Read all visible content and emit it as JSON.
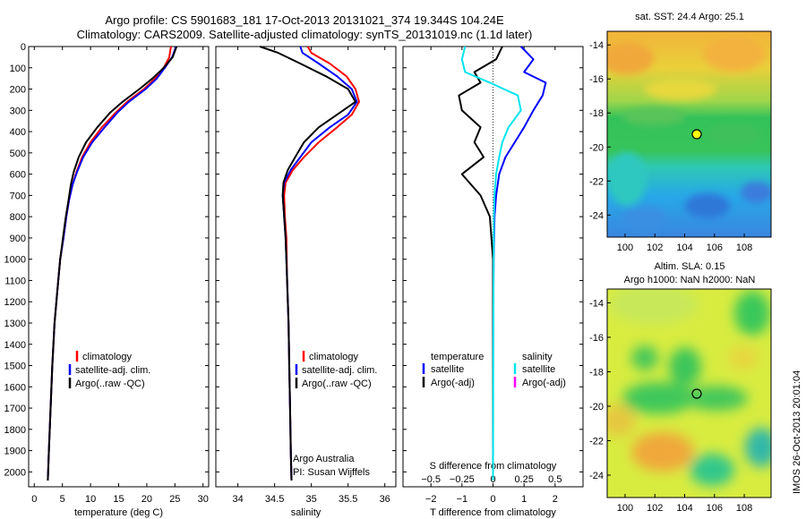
{
  "header": {
    "line1": "Argo profile: CS 5901683_181 17-Oct-2013 20131021_374 19.344S 104.24E",
    "line2": "Climatology: CARS2009. Satellite-adjusted climatology: synTS_20131019.nc (1.1d later)"
  },
  "side_stamp": "IMOS 26-Oct-2013 20:01:04",
  "colors": {
    "climatology": "#ff0000",
    "satellite": "#0000ff",
    "argo": "#000000",
    "argo_qc_marker": "#000000",
    "satellite_s_diff": "#00e5ee",
    "argo_s_diff": "#ff00ff"
  },
  "chart_data": [
    {
      "type": "line",
      "xlabel": "temperature (deg C)",
      "ylabel": "",
      "xlim": [
        -1,
        31
      ],
      "ylim": [
        2070,
        0
      ],
      "xticks": [
        0,
        5,
        10,
        15,
        20,
        25,
        30
      ],
      "xtick_labels": [
        "0",
        "5",
        "10",
        "15",
        "20",
        "25",
        "30"
      ],
      "yticks": [
        0,
        100,
        200,
        300,
        400,
        500,
        600,
        700,
        800,
        900,
        1000,
        1100,
        1200,
        1300,
        1400,
        1500,
        1600,
        1700,
        1800,
        1900,
        2000
      ],
      "ytick_labels": [
        "0",
        "100",
        "200",
        "300",
        "400",
        "500",
        "600",
        "700",
        "800",
        "900",
        "1000",
        "1100",
        "1200",
        "1300",
        "1400",
        "1500",
        "1600",
        "1700",
        "1800",
        "1900",
        "2000"
      ],
      "legend": [
        "climatology",
        "satellite-adj. clim.",
        "Argo(..raw -QC)"
      ],
      "series": [
        {
          "name": "climatology",
          "color": "#ff0000",
          "x": [
            24.3,
            24.0,
            23.0,
            21.5,
            19.5,
            16.5,
            14.5,
            12.0,
            10.0,
            8.5,
            7.5,
            6.8,
            6.2,
            5.7,
            5.2,
            4.6,
            4.1,
            3.6,
            3.2,
            2.9,
            2.6,
            2.4
          ],
          "y": [
            0,
            50,
            100,
            150,
            200,
            260,
            310,
            380,
            450,
            520,
            590,
            650,
            720,
            800,
            900,
            1000,
            1150,
            1300,
            1500,
            1700,
            1900,
            2040
          ]
        },
        {
          "name": "satellite-adj. clim.",
          "color": "#0000ff",
          "x": [
            25.2,
            24.5,
            23.2,
            21.8,
            19.8,
            16.8,
            14.8,
            12.5,
            10.3,
            8.7,
            7.6,
            6.8,
            6.2,
            5.7,
            5.2,
            4.6,
            4.1,
            3.6,
            3.2,
            2.9,
            2.6,
            2.4
          ],
          "y": [
            0,
            50,
            100,
            150,
            200,
            260,
            310,
            380,
            450,
            520,
            590,
            650,
            720,
            800,
            900,
            1000,
            1150,
            1300,
            1500,
            1700,
            1900,
            2040
          ]
        },
        {
          "name": "Argo(..raw -QC)",
          "color": "#000000",
          "x": [
            25.3,
            24.6,
            23.0,
            21.0,
            18.7,
            15.7,
            13.5,
            11.2,
            9.2,
            7.9,
            7.0,
            6.5,
            6.1,
            5.6,
            5.1,
            4.6,
            4.1,
            3.6,
            3.2,
            2.9,
            2.6,
            2.4
          ],
          "y": [
            0,
            50,
            100,
            150,
            200,
            260,
            310,
            380,
            450,
            520,
            590,
            650,
            720,
            800,
            900,
            1000,
            1150,
            1300,
            1500,
            1700,
            1900,
            2040
          ]
        }
      ]
    },
    {
      "type": "line",
      "xlabel": "salinity",
      "xlim": [
        33.7,
        36.15
      ],
      "ylim": [
        2070,
        0
      ],
      "xticks": [
        34,
        34.5,
        35,
        35.5,
        36
      ],
      "xtick_labels": [
        "34",
        "34.5",
        "35",
        "35.5",
        "36"
      ],
      "legend": [
        "climatology",
        "satellite-adj. clim.",
        "Argo(..raw -QC)"
      ],
      "annotations": [
        "Argo Australia",
        "PI: Susan Wijffels"
      ],
      "series": [
        {
          "name": "climatology",
          "color": "#ff0000",
          "x": [
            34.95,
            35.0,
            35.25,
            35.48,
            35.6,
            35.65,
            35.55,
            35.35,
            35.1,
            34.9,
            34.75,
            34.65,
            34.63,
            34.64,
            34.66,
            34.67,
            34.69,
            34.7,
            34.71,
            34.72,
            34.73
          ],
          "y": [
            0,
            30,
            80,
            140,
            200,
            260,
            320,
            380,
            450,
            520,
            580,
            640,
            700,
            800,
            900,
            1100,
            1300,
            1500,
            1700,
            1900,
            2040
          ]
        },
        {
          "name": "satellite-adj. clim.",
          "color": "#0000ff",
          "x": [
            34.85,
            34.88,
            35.1,
            35.35,
            35.55,
            35.62,
            35.5,
            35.25,
            35.0,
            34.85,
            34.72,
            34.63,
            34.61,
            34.63,
            34.65,
            34.67,
            34.69,
            34.7,
            34.71,
            34.72,
            34.73
          ],
          "y": [
            0,
            30,
            80,
            140,
            200,
            260,
            320,
            380,
            450,
            520,
            580,
            640,
            700,
            800,
            900,
            1100,
            1300,
            1500,
            1700,
            1900,
            2040
          ]
        },
        {
          "name": "Argo(..raw -QC)",
          "color": "#000000",
          "x": [
            34.3,
            34.55,
            34.85,
            35.2,
            35.5,
            35.6,
            35.35,
            35.1,
            34.9,
            34.78,
            34.68,
            34.62,
            34.61,
            34.63,
            34.65,
            34.67,
            34.69,
            34.7,
            34.71,
            34.72,
            34.73
          ],
          "y": [
            0,
            30,
            80,
            140,
            200,
            260,
            320,
            380,
            450,
            520,
            580,
            640,
            700,
            800,
            900,
            1100,
            1300,
            1500,
            1700,
            1900,
            2040
          ]
        }
      ]
    },
    {
      "type": "line",
      "xlabel": "T difference from climatology",
      "secondary_xlabel": "S difference from climatology",
      "xlim": [
        -2.9,
        2.9
      ],
      "ylim": [
        2070,
        0
      ],
      "xticks": [
        -2,
        -1,
        0,
        1,
        2
      ],
      "xtick_labels": [
        "−2",
        "−1",
        "0",
        "1",
        "2"
      ],
      "secondary_xticks": [
        -0.5,
        -0.25,
        0,
        0.25,
        0.5
      ],
      "secondary_xtick_labels": [
        "−0.5",
        "−0.25",
        "0",
        "0.25",
        "0.5"
      ],
      "legend_temperature_title": "temperature",
      "legend_salinity_title": "salinity",
      "legend_temperature": [
        "satellite",
        "Argo(-adj)"
      ],
      "legend_salinity": [
        "satellite",
        "Argo(-adj)"
      ],
      "series": [
        {
          "name": "T satellite",
          "color": "#0000ff",
          "x": [
            0.9,
            1.3,
            1.0,
            1.7,
            1.6,
            1.3,
            1.0,
            0.7,
            0.4,
            0.2,
            0.1,
            0.05,
            0.02,
            0.0,
            0.0
          ],
          "y": [
            0,
            60,
            120,
            170,
            230,
            300,
            380,
            450,
            520,
            600,
            700,
            800,
            1000,
            1500,
            2040
          ]
        },
        {
          "name": "T Argo(-adj)",
          "color": "#000000",
          "x": [
            0.3,
            0.1,
            -0.6,
            -0.4,
            -1.1,
            -1.0,
            -0.4,
            -0.6,
            -0.3,
            -1.0,
            -0.4,
            -0.1,
            0.0,
            0.0,
            0.0
          ],
          "y": [
            0,
            60,
            120,
            170,
            230,
            300,
            380,
            450,
            520,
            600,
            700,
            800,
            1000,
            1500,
            2040
          ]
        },
        {
          "name": "S satellite",
          "color": "#00e5ee",
          "x": [
            -0.9,
            -1.0,
            -0.9,
            -0.1,
            0.8,
            0.9,
            0.5,
            0.3,
            0.2,
            0.1,
            0.05,
            0.03,
            0.02,
            0.01,
            0.0
          ],
          "y": [
            0,
            60,
            120,
            170,
            230,
            300,
            380,
            450,
            520,
            600,
            700,
            800,
            1000,
            1500,
            2040
          ]
        }
      ]
    }
  ],
  "maps": {
    "top": {
      "title": "sat. SST: 24.4  Argo: 25.1",
      "xticks": [
        "100",
        "102",
        "104",
        "106",
        "108"
      ],
      "yticks": [
        "-14",
        "-16",
        "-18",
        "-20",
        "-22",
        "-24"
      ],
      "marker_lon": 104.24,
      "marker_lat": -19.344
    },
    "bottom": {
      "title_line1": "Altim. SLA: 0.15",
      "title_line2": "Argo h1000: NaN h2000: NaN",
      "xticks": [
        "100",
        "102",
        "104",
        "106",
        "108"
      ],
      "yticks": [
        "-14",
        "-16",
        "-18",
        "-20",
        "-22",
        "-24"
      ],
      "marker_lon": 104.24,
      "marker_lat": -19.344
    }
  }
}
